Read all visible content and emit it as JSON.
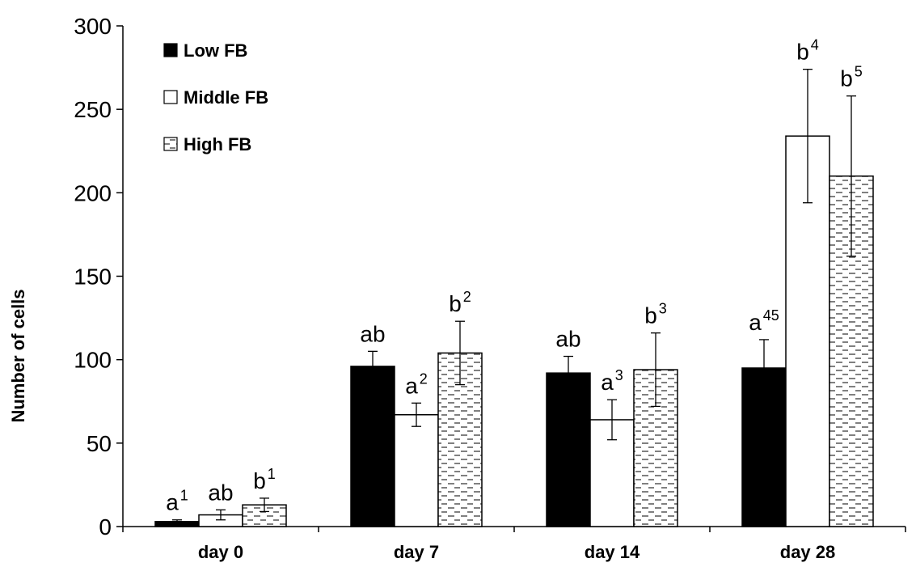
{
  "chart_data": {
    "type": "bar",
    "title": "",
    "xlabel": "",
    "ylabel": "Number of cells",
    "ylim": [
      0,
      300
    ],
    "yticks": [
      0,
      50,
      100,
      150,
      200,
      250,
      300
    ],
    "grid": false,
    "legend_position": "top-left",
    "categories": [
      "day 0",
      "day 7",
      "day 14",
      "day 28"
    ],
    "series": [
      {
        "name": "Low FB",
        "fill": "solid",
        "color": "#000000",
        "values": [
          3,
          96,
          92,
          95
        ],
        "errors": [
          1,
          9,
          10,
          17
        ]
      },
      {
        "name": "Middle FB",
        "fill": "white",
        "color": "#ffffff",
        "values": [
          7,
          67,
          64,
          234
        ],
        "errors": [
          3,
          7,
          12,
          40
        ]
      },
      {
        "name": "High FB",
        "fill": "dashed-pattern",
        "color": "#d9d9d9",
        "values": [
          13,
          104,
          94,
          210
        ],
        "errors": [
          4,
          19,
          22,
          48
        ]
      }
    ],
    "annotations": [
      {
        "category": 0,
        "series": 0,
        "base": "a",
        "sup": "1"
      },
      {
        "category": 0,
        "series": 1,
        "base": "ab",
        "sup": ""
      },
      {
        "category": 0,
        "series": 2,
        "base": "b",
        "sup": "1"
      },
      {
        "category": 1,
        "series": 0,
        "base": "ab",
        "sup": ""
      },
      {
        "category": 1,
        "series": 1,
        "base": "a",
        "sup": "2"
      },
      {
        "category": 1,
        "series": 2,
        "base": "b",
        "sup": "2"
      },
      {
        "category": 2,
        "series": 0,
        "base": "ab",
        "sup": ""
      },
      {
        "category": 2,
        "series": 1,
        "base": "a",
        "sup": "3"
      },
      {
        "category": 2,
        "series": 2,
        "base": "b",
        "sup": "3"
      },
      {
        "category": 3,
        "series": 0,
        "base": "a",
        "sup": "45"
      },
      {
        "category": 3,
        "series": 1,
        "base": "b",
        "sup": "4"
      },
      {
        "category": 3,
        "series": 2,
        "base": "b",
        "sup": "5"
      }
    ]
  }
}
